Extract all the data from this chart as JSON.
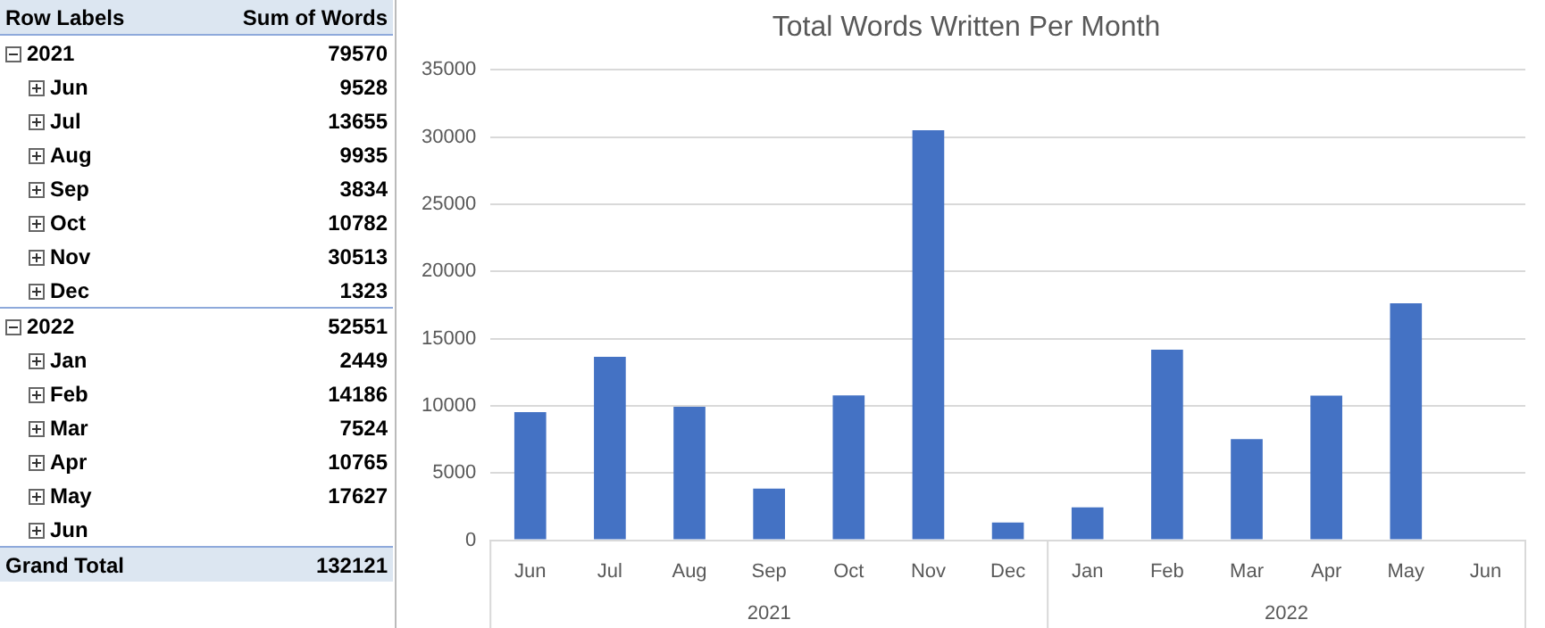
{
  "chart_data": [
    {
      "type": "other",
      "annotations": [
        "Row Labels",
        "Sum of Words",
        "2021",
        "79570",
        "Jun",
        "9528",
        "Jul",
        "13655",
        "Aug",
        "9935",
        "Sep",
        "3834",
        "Oct",
        "10782",
        "Nov",
        "30513",
        "Dec",
        "1323",
        "2022",
        "52551",
        "Jan",
        "2449",
        "Feb",
        "14186",
        "Mar",
        "7524",
        "Apr",
        "10765",
        "May",
        "17627",
        "Jun",
        "Grand Total",
        "132121"
      ]
    },
    {
      "type": "bar",
      "title": "Total Words Written Per Month",
      "categories": [
        "Jun",
        "Jul",
        "Aug",
        "Sep",
        "Oct",
        "Nov",
        "Dec",
        "Jan",
        "Feb",
        "Mar",
        "Apr",
        "May",
        "Jun"
      ],
      "values": [
        9528,
        13655,
        9935,
        3834,
        10782,
        30513,
        1323,
        2449,
        14186,
        7524,
        10765,
        17627,
        null
      ],
      "color": "#4472c4",
      "ylim": [
        0,
        35000
      ],
      "yticks": [
        0,
        5000,
        10000,
        15000,
        20000,
        25000,
        30000,
        35000
      ],
      "grid": "y",
      "legend": false,
      "annotations": [
        "2021",
        "2022"
      ]
    }
  ]
}
